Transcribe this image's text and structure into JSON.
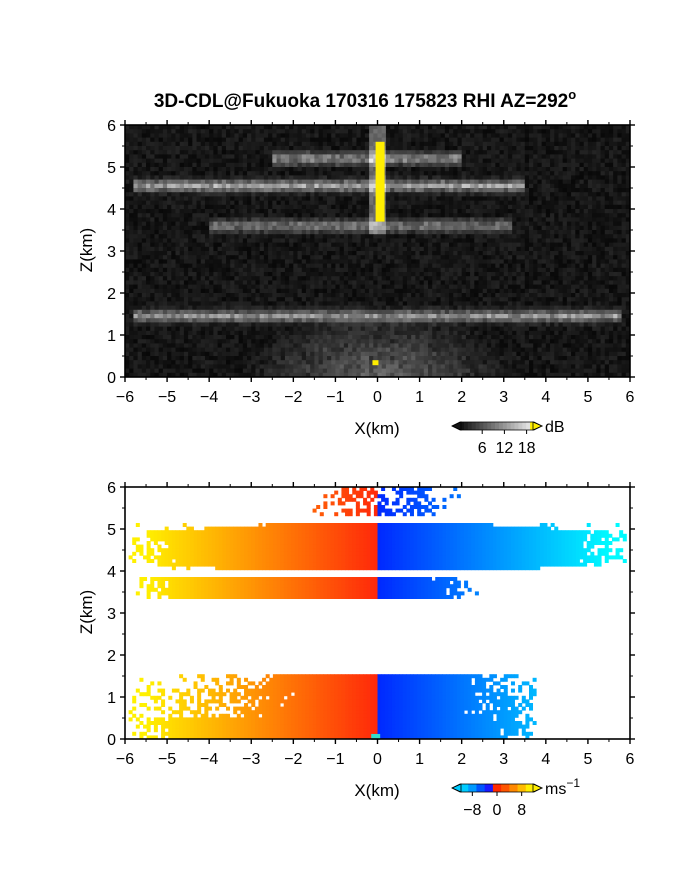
{
  "chart_data": [
    {
      "type": "heatmap",
      "title": "3D-CDL@Fukuoka 170316 175823 RHI AZ=292",
      "title_superscript": "o",
      "xlabel": "X(km)",
      "ylabel": "Z(km)",
      "xlim": [
        -6,
        6
      ],
      "ylim": [
        0,
        6
      ],
      "xticks": [
        "-6",
        "-5",
        "-4",
        "-3",
        "-2",
        "-1",
        "0",
        "1",
        "2",
        "3",
        "4",
        "5",
        "6"
      ],
      "yticks": [
        "0",
        "1",
        "2",
        "3",
        "4",
        "5",
        "6"
      ],
      "colorbar": {
        "unit": "dB",
        "ticks": [
          "6",
          "12",
          "18"
        ],
        "tick_values": [
          6,
          12,
          18
        ],
        "range": [
          0,
          20
        ],
        "colormap": "gray"
      },
      "features": [
        {
          "name": "layer",
          "x": [
            -5.8,
            3.5
          ],
          "z": 4.55,
          "intensity": 12
        },
        {
          "name": "layer",
          "x": [
            -2.5,
            2.0
          ],
          "z": 5.2,
          "intensity": 11
        },
        {
          "name": "layer",
          "x": [
            -4.0,
            3.2
          ],
          "z": 3.6,
          "intensity": 9
        },
        {
          "name": "layer",
          "x": [
            -5.8,
            5.8
          ],
          "z": 1.45,
          "intensity": 11
        },
        {
          "name": "vertical-beam",
          "x": 0.05,
          "z": [
            3.7,
            5.6
          ],
          "intensity": 20,
          "color": "#ffee00"
        }
      ]
    },
    {
      "type": "heatmap",
      "xlabel": "X(km)",
      "ylabel": "Z(km)",
      "xlim": [
        -6,
        6
      ],
      "ylim": [
        0,
        6
      ],
      "xticks": [
        "-6",
        "-5",
        "-4",
        "-3",
        "-2",
        "-1",
        "0",
        "1",
        "2",
        "3",
        "4",
        "5",
        "6"
      ],
      "yticks": [
        "0",
        "1",
        "2",
        "3",
        "4",
        "5",
        "6"
      ],
      "colorbar": {
        "unit": "ms",
        "unit_superscript": "−1",
        "ticks": [
          "−8",
          "0",
          "8"
        ],
        "tick_values": [
          -8,
          0,
          8
        ],
        "range": [
          -12,
          12
        ],
        "colormap": "blue-red-yellow"
      },
      "regions": [
        {
          "name": "upper-layer",
          "x": [
            -5.9,
            5.9
          ],
          "z": [
            4.0,
            5.1
          ]
        },
        {
          "name": "mid-layer",
          "x": [
            -5.9,
            2.4
          ],
          "z": [
            3.35,
            3.85
          ]
        },
        {
          "name": "top-layer",
          "x": [
            -1.5,
            2.0
          ],
          "z": [
            5.3,
            6.0
          ]
        },
        {
          "name": "boundary-layer",
          "x": [
            -5.9,
            3.8
          ],
          "z": [
            0.0,
            1.55
          ]
        }
      ]
    }
  ]
}
